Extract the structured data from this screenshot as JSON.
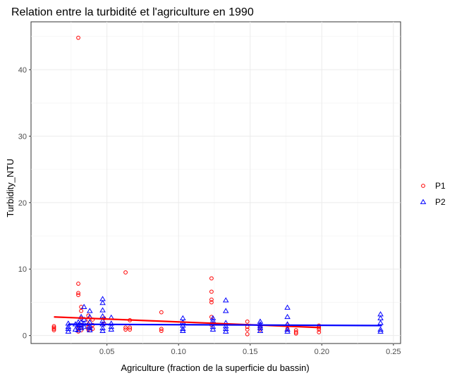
{
  "chart_data": {
    "type": "scatter",
    "title": "Relation entre la turbidité et l'agriculture en 1990",
    "xlabel": "Agriculture (fraction de la superficie du bassin)",
    "ylabel": "Turbidity_NTU",
    "xlim": [
      -0.003,
      0.255
    ],
    "ylim": [
      -1.2,
      47.2
    ],
    "x_ticks": [
      0.05,
      0.1,
      0.15,
      0.2,
      0.25
    ],
    "x_tick_labels": [
      "0.05",
      "0.10",
      "0.15",
      "0.20",
      "0.25"
    ],
    "y_ticks": [
      0,
      10,
      20,
      30,
      40
    ],
    "y_tick_labels": [
      "0",
      "10",
      "20",
      "30",
      "40"
    ],
    "grid": true,
    "legend_position": "right",
    "series": [
      {
        "name": "P1",
        "color": "#ff0000",
        "marker": "circle",
        "trend": {
          "x": [
            0.013,
            0.199
          ],
          "y": [
            2.8,
            1.2
          ]
        },
        "points": [
          [
            0.013,
            1.0
          ],
          [
            0.013,
            1.2
          ],
          [
            0.013,
            1.4
          ],
          [
            0.013,
            0.8
          ],
          [
            0.03,
            44.8
          ],
          [
            0.03,
            7.8
          ],
          [
            0.03,
            6.4
          ],
          [
            0.03,
            6.1
          ],
          [
            0.03,
            1.0
          ],
          [
            0.03,
            0.6
          ],
          [
            0.032,
            4.3
          ],
          [
            0.032,
            3.7
          ],
          [
            0.032,
            2.6
          ],
          [
            0.032,
            1.6
          ],
          [
            0.032,
            0.8
          ],
          [
            0.037,
            3.0
          ],
          [
            0.037,
            2.4
          ],
          [
            0.037,
            1.7
          ],
          [
            0.037,
            1.3
          ],
          [
            0.037,
            0.9
          ],
          [
            0.04,
            2.4
          ],
          [
            0.04,
            1.6
          ],
          [
            0.04,
            1.0
          ],
          [
            0.048,
            2.6
          ],
          [
            0.048,
            1.8
          ],
          [
            0.063,
            9.5
          ],
          [
            0.063,
            1.2
          ],
          [
            0.063,
            0.9
          ],
          [
            0.066,
            2.3
          ],
          [
            0.066,
            1.2
          ],
          [
            0.066,
            0.9
          ],
          [
            0.088,
            3.5
          ],
          [
            0.088,
            1.0
          ],
          [
            0.088,
            0.7
          ],
          [
            0.123,
            8.6
          ],
          [
            0.123,
            6.6
          ],
          [
            0.123,
            5.4
          ],
          [
            0.123,
            5.0
          ],
          [
            0.123,
            2.8
          ],
          [
            0.123,
            1.6
          ],
          [
            0.148,
            2.1
          ],
          [
            0.148,
            1.3
          ],
          [
            0.148,
            0.9
          ],
          [
            0.148,
            0.2
          ],
          [
            0.157,
            1.4
          ],
          [
            0.157,
            0.9
          ],
          [
            0.176,
            1.6
          ],
          [
            0.176,
            1.0
          ],
          [
            0.182,
            0.8
          ],
          [
            0.182,
            0.5
          ],
          [
            0.182,
            0.3
          ],
          [
            0.198,
            1.5
          ],
          [
            0.198,
            1.2
          ],
          [
            0.198,
            0.9
          ],
          [
            0.198,
            0.5
          ]
        ]
      },
      {
        "name": "P2",
        "color": "#0000ff",
        "marker": "triangle",
        "trend": {
          "x": [
            0.023,
            0.242
          ],
          "y": [
            1.7,
            1.5
          ]
        },
        "points": [
          [
            0.023,
            1.8
          ],
          [
            0.023,
            1.3
          ],
          [
            0.023,
            1.0
          ],
          [
            0.023,
            0.6
          ],
          [
            0.028,
            1.7
          ],
          [
            0.028,
            0.9
          ],
          [
            0.03,
            2.0
          ],
          [
            0.03,
            1.6
          ],
          [
            0.03,
            1.2
          ],
          [
            0.03,
            0.8
          ],
          [
            0.032,
            2.8
          ],
          [
            0.032,
            2.0
          ],
          [
            0.032,
            1.5
          ],
          [
            0.032,
            1.1
          ],
          [
            0.034,
            4.3
          ],
          [
            0.034,
            2.4
          ],
          [
            0.034,
            1.8
          ],
          [
            0.034,
            1.3
          ],
          [
            0.038,
            3.7
          ],
          [
            0.038,
            2.8
          ],
          [
            0.038,
            2.0
          ],
          [
            0.038,
            1.4
          ],
          [
            0.038,
            1.1
          ],
          [
            0.038,
            0.8
          ],
          [
            0.047,
            5.5
          ],
          [
            0.047,
            4.9
          ],
          [
            0.047,
            3.8
          ],
          [
            0.047,
            2.9
          ],
          [
            0.047,
            2.2
          ],
          [
            0.047,
            1.7
          ],
          [
            0.047,
            1.1
          ],
          [
            0.047,
            0.7
          ],
          [
            0.053,
            2.7
          ],
          [
            0.053,
            1.8
          ],
          [
            0.053,
            1.3
          ],
          [
            0.053,
            0.9
          ],
          [
            0.103,
            2.6
          ],
          [
            0.103,
            2.0
          ],
          [
            0.103,
            1.5
          ],
          [
            0.103,
            1.0
          ],
          [
            0.103,
            0.7
          ],
          [
            0.124,
            2.6
          ],
          [
            0.124,
            2.2
          ],
          [
            0.124,
            1.8
          ],
          [
            0.124,
            1.3
          ],
          [
            0.124,
            0.9
          ],
          [
            0.133,
            5.3
          ],
          [
            0.133,
            3.7
          ],
          [
            0.133,
            1.9
          ],
          [
            0.133,
            1.4
          ],
          [
            0.133,
            1.0
          ],
          [
            0.133,
            0.6
          ],
          [
            0.157,
            2.1
          ],
          [
            0.157,
            1.7
          ],
          [
            0.157,
            1.4
          ],
          [
            0.157,
            1.1
          ],
          [
            0.157,
            0.7
          ],
          [
            0.176,
            4.2
          ],
          [
            0.176,
            2.8
          ],
          [
            0.176,
            1.7
          ],
          [
            0.176,
            0.9
          ],
          [
            0.176,
            0.6
          ],
          [
            0.241,
            3.2
          ],
          [
            0.241,
            2.6
          ],
          [
            0.241,
            1.9
          ],
          [
            0.241,
            0.9
          ],
          [
            0.241,
            0.6
          ]
        ]
      }
    ]
  }
}
